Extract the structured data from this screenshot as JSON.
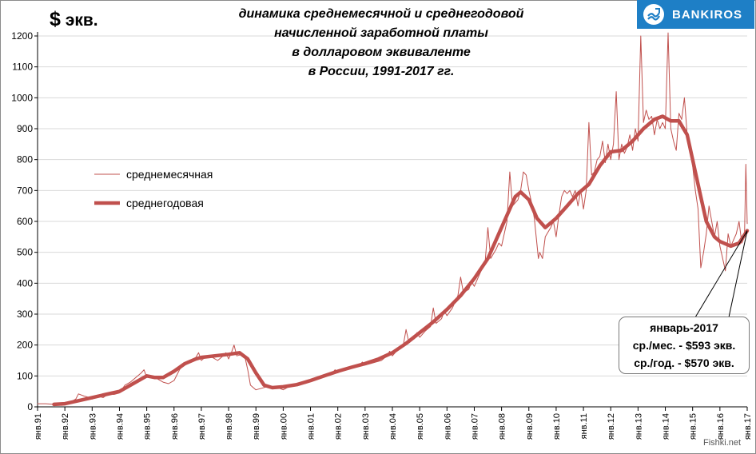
{
  "header": {
    "unit_symbol": "$",
    "unit_text": "экв.",
    "title_lines": [
      "динамика среднемесячной  и среднегодовой",
      "начисленной заработной платы",
      "в долларовом эквиваленте",
      "в России, 1991-2017 гг."
    ]
  },
  "logo": {
    "text": "BANKIROS"
  },
  "legend": {
    "monthly": "среднемесячная",
    "annual": "среднегодовая"
  },
  "annotation": {
    "lines": [
      "январь-2017",
      "ср./мес. - $593 экв.",
      "ср./год. - $570 экв."
    ]
  },
  "watermark": "Fishki.net",
  "colors": {
    "series": "#c0504d",
    "grid": "#d9d9d9",
    "axis": "#000000"
  },
  "chart_data": {
    "type": "line",
    "xlabel": "",
    "ylabel": "",
    "ylim": [
      0,
      1200
    ],
    "yticks": [
      0,
      100,
      200,
      300,
      400,
      500,
      600,
      700,
      800,
      900,
      1000,
      1100,
      1200
    ],
    "x_range": [
      1991.0,
      2017.0
    ],
    "x_ticks": [
      {
        "x": 1991,
        "label": "янв.91"
      },
      {
        "x": 1992,
        "label": "янв.92"
      },
      {
        "x": 1993,
        "label": "янв.93"
      },
      {
        "x": 1994,
        "label": "янв.94"
      },
      {
        "x": 1995,
        "label": "янв.95"
      },
      {
        "x": 1996,
        "label": "янв.96"
      },
      {
        "x": 1997,
        "label": "янв.97"
      },
      {
        "x": 1998,
        "label": "янв.98"
      },
      {
        "x": 1999,
        "label": "янв.99"
      },
      {
        "x": 2000,
        "label": "янв.00"
      },
      {
        "x": 2001,
        "label": "янв.01"
      },
      {
        "x": 2002,
        "label": "янв.02"
      },
      {
        "x": 2003,
        "label": "янв.03"
      },
      {
        "x": 2004,
        "label": "янв.04"
      },
      {
        "x": 2005,
        "label": "янв.05"
      },
      {
        "x": 2006,
        "label": "янв.06"
      },
      {
        "x": 2007,
        "label": "янв.07"
      },
      {
        "x": 2008,
        "label": "янв.08"
      },
      {
        "x": 2009,
        "label": "янв.09"
      },
      {
        "x": 2010,
        "label": "янв.10"
      },
      {
        "x": 2011,
        "label": "янв.11"
      },
      {
        "x": 2012,
        "label": "янв.12"
      },
      {
        "x": 2013,
        "label": "янв.13"
      },
      {
        "x": 2014,
        "label": "янв.14"
      },
      {
        "x": 2015,
        "label": "янв.15"
      },
      {
        "x": 2016,
        "label": "янв.16"
      },
      {
        "x": 2017,
        "label": "янв.17"
      }
    ],
    "grid": true,
    "legend_position": "left-middle",
    "series": [
      {
        "name": "среднемесячная",
        "style": "thin",
        "points": [
          [
            1991.0,
            10
          ],
          [
            1991.3,
            10
          ],
          [
            1991.6,
            8
          ],
          [
            1991.9,
            5
          ],
          [
            1992.0,
            8
          ],
          [
            1992.2,
            15
          ],
          [
            1992.4,
            25
          ],
          [
            1992.5,
            42
          ],
          [
            1992.7,
            35
          ],
          [
            1992.9,
            30
          ],
          [
            1993.0,
            25
          ],
          [
            1993.2,
            35
          ],
          [
            1993.4,
            30
          ],
          [
            1993.6,
            42
          ],
          [
            1993.8,
            40
          ],
          [
            1994.0,
            45
          ],
          [
            1994.2,
            70
          ],
          [
            1994.4,
            80
          ],
          [
            1994.6,
            95
          ],
          [
            1994.8,
            110
          ],
          [
            1994.9,
            120
          ],
          [
            1995.0,
            95
          ],
          [
            1995.2,
            100
          ],
          [
            1995.4,
            90
          ],
          [
            1995.6,
            80
          ],
          [
            1995.8,
            75
          ],
          [
            1996.0,
            85
          ],
          [
            1996.2,
            120
          ],
          [
            1996.4,
            140
          ],
          [
            1996.6,
            145
          ],
          [
            1996.8,
            160
          ],
          [
            1996.9,
            175
          ],
          [
            1997.0,
            150
          ],
          [
            1997.2,
            165
          ],
          [
            1997.4,
            160
          ],
          [
            1997.6,
            150
          ],
          [
            1997.8,
            165
          ],
          [
            1997.9,
            175
          ],
          [
            1998.0,
            155
          ],
          [
            1998.1,
            175
          ],
          [
            1998.2,
            200
          ],
          [
            1998.3,
            165
          ],
          [
            1998.5,
            170
          ],
          [
            1998.6,
            160
          ],
          [
            1998.7,
            120
          ],
          [
            1998.8,
            70
          ],
          [
            1999.0,
            55
          ],
          [
            1999.2,
            60
          ],
          [
            1999.4,
            65
          ],
          [
            1999.6,
            60
          ],
          [
            1999.8,
            62
          ],
          [
            2000.0,
            55
          ],
          [
            2000.2,
            65
          ],
          [
            2000.4,
            70
          ],
          [
            2000.6,
            75
          ],
          [
            2000.8,
            80
          ],
          [
            2001.0,
            85
          ],
          [
            2001.2,
            95
          ],
          [
            2001.4,
            100
          ],
          [
            2001.6,
            105
          ],
          [
            2001.8,
            110
          ],
          [
            2001.9,
            120
          ],
          [
            2002.0,
            110
          ],
          [
            2002.2,
            120
          ],
          [
            2002.4,
            125
          ],
          [
            2002.6,
            130
          ],
          [
            2002.8,
            135
          ],
          [
            2002.9,
            145
          ],
          [
            2003.0,
            135
          ],
          [
            2003.2,
            140
          ],
          [
            2003.4,
            145
          ],
          [
            2003.6,
            150
          ],
          [
            2003.8,
            165
          ],
          [
            2003.9,
            180
          ],
          [
            2004.0,
            165
          ],
          [
            2004.2,
            185
          ],
          [
            2004.4,
            200
          ],
          [
            2004.5,
            250
          ],
          [
            2004.6,
            210
          ],
          [
            2004.8,
            220
          ],
          [
            2004.9,
            240
          ],
          [
            2005.0,
            225
          ],
          [
            2005.2,
            245
          ],
          [
            2005.4,
            260
          ],
          [
            2005.5,
            320
          ],
          [
            2005.6,
            270
          ],
          [
            2005.8,
            285
          ],
          [
            2005.9,
            310
          ],
          [
            2006.0,
            295
          ],
          [
            2006.2,
            320
          ],
          [
            2006.4,
            360
          ],
          [
            2006.5,
            420
          ],
          [
            2006.6,
            370
          ],
          [
            2006.8,
            380
          ],
          [
            2006.9,
            405
          ],
          [
            2007.0,
            390
          ],
          [
            2007.2,
            430
          ],
          [
            2007.4,
            470
          ],
          [
            2007.5,
            580
          ],
          [
            2007.6,
            480
          ],
          [
            2007.8,
            510
          ],
          [
            2007.9,
            530
          ],
          [
            2008.0,
            520
          ],
          [
            2008.2,
            600
          ],
          [
            2008.3,
            760
          ],
          [
            2008.4,
            650
          ],
          [
            2008.6,
            670
          ],
          [
            2008.7,
            700
          ],
          [
            2008.8,
            760
          ],
          [
            2008.9,
            750
          ],
          [
            2009.0,
            700
          ],
          [
            2009.1,
            660
          ],
          [
            2009.2,
            610
          ],
          [
            2009.35,
            480
          ],
          [
            2009.4,
            500
          ],
          [
            2009.5,
            480
          ],
          [
            2009.6,
            550
          ],
          [
            2009.8,
            580
          ],
          [
            2009.9,
            600
          ],
          [
            2010.0,
            550
          ],
          [
            2010.1,
            620
          ],
          [
            2010.2,
            680
          ],
          [
            2010.3,
            700
          ],
          [
            2010.4,
            690
          ],
          [
            2010.5,
            700
          ],
          [
            2010.6,
            680
          ],
          [
            2010.7,
            700
          ],
          [
            2010.8,
            650
          ],
          [
            2010.9,
            700
          ],
          [
            2011.0,
            640
          ],
          [
            2011.1,
            700
          ],
          [
            2011.2,
            920
          ],
          [
            2011.3,
            750
          ],
          [
            2011.4,
            760
          ],
          [
            2011.5,
            800
          ],
          [
            2011.6,
            810
          ],
          [
            2011.7,
            860
          ],
          [
            2011.8,
            790
          ],
          [
            2011.9,
            850
          ],
          [
            2012.0,
            800
          ],
          [
            2012.1,
            850
          ],
          [
            2012.2,
            1020
          ],
          [
            2012.3,
            800
          ],
          [
            2012.4,
            850
          ],
          [
            2012.5,
            820
          ],
          [
            2012.6,
            840
          ],
          [
            2012.7,
            880
          ],
          [
            2012.8,
            830
          ],
          [
            2012.9,
            900
          ],
          [
            2013.0,
            860
          ],
          [
            2013.1,
            1200
          ],
          [
            2013.2,
            920
          ],
          [
            2013.3,
            960
          ],
          [
            2013.4,
            930
          ],
          [
            2013.5,
            940
          ],
          [
            2013.6,
            880
          ],
          [
            2013.7,
            930
          ],
          [
            2013.8,
            900
          ],
          [
            2013.9,
            920
          ],
          [
            2014.0,
            900
          ],
          [
            2014.1,
            1210
          ],
          [
            2014.2,
            900
          ],
          [
            2014.3,
            860
          ],
          [
            2014.4,
            830
          ],
          [
            2014.5,
            950
          ],
          [
            2014.6,
            930
          ],
          [
            2014.7,
            1000
          ],
          [
            2014.8,
            880
          ],
          [
            2014.9,
            830
          ],
          [
            2015.0,
            780
          ],
          [
            2015.1,
            700
          ],
          [
            2015.2,
            640
          ],
          [
            2015.3,
            450
          ],
          [
            2015.4,
            500
          ],
          [
            2015.5,
            560
          ],
          [
            2015.6,
            650
          ],
          [
            2015.7,
            600
          ],
          [
            2015.8,
            550
          ],
          [
            2015.9,
            600
          ],
          [
            2016.0,
            520
          ],
          [
            2016.1,
            480
          ],
          [
            2016.2,
            440
          ],
          [
            2016.3,
            560
          ],
          [
            2016.4,
            520
          ],
          [
            2016.5,
            540
          ],
          [
            2016.6,
            560
          ],
          [
            2016.7,
            600
          ],
          [
            2016.8,
            530
          ],
          [
            2016.9,
            550
          ],
          [
            2016.95,
            785
          ],
          [
            2017.0,
            593
          ]
        ]
      },
      {
        "name": "среднегодовая",
        "style": "thick",
        "points": [
          [
            1991.6,
            8
          ],
          [
            1992.0,
            10
          ],
          [
            1992.5,
            20
          ],
          [
            1993.0,
            30
          ],
          [
            1993.5,
            40
          ],
          [
            1994.0,
            50
          ],
          [
            1994.5,
            75
          ],
          [
            1995.0,
            100
          ],
          [
            1995.3,
            95
          ],
          [
            1995.6,
            95
          ],
          [
            1996.0,
            115
          ],
          [
            1996.4,
            140
          ],
          [
            1996.8,
            155
          ],
          [
            1997.0,
            160
          ],
          [
            1997.5,
            165
          ],
          [
            1998.0,
            170
          ],
          [
            1998.4,
            175
          ],
          [
            1998.7,
            155
          ],
          [
            1999.0,
            110
          ],
          [
            1999.3,
            70
          ],
          [
            1999.6,
            62
          ],
          [
            2000.0,
            65
          ],
          [
            2000.5,
            72
          ],
          [
            2001.0,
            85
          ],
          [
            2001.5,
            100
          ],
          [
            2002.0,
            115
          ],
          [
            2002.5,
            128
          ],
          [
            2003.0,
            140
          ],
          [
            2003.5,
            155
          ],
          [
            2004.0,
            175
          ],
          [
            2004.5,
            205
          ],
          [
            2005.0,
            240
          ],
          [
            2005.5,
            275
          ],
          [
            2006.0,
            315
          ],
          [
            2006.5,
            360
          ],
          [
            2007.0,
            415
          ],
          [
            2007.5,
            480
          ],
          [
            2008.0,
            580
          ],
          [
            2008.5,
            680
          ],
          [
            2008.7,
            695
          ],
          [
            2009.0,
            670
          ],
          [
            2009.3,
            610
          ],
          [
            2009.6,
            580
          ],
          [
            2010.0,
            610
          ],
          [
            2010.4,
            650
          ],
          [
            2010.8,
            690
          ],
          [
            2011.2,
            720
          ],
          [
            2011.6,
            780
          ],
          [
            2012.0,
            825
          ],
          [
            2012.4,
            830
          ],
          [
            2012.8,
            860
          ],
          [
            2013.2,
            900
          ],
          [
            2013.6,
            930
          ],
          [
            2013.9,
            940
          ],
          [
            2014.2,
            925
          ],
          [
            2014.5,
            925
          ],
          [
            2014.8,
            880
          ],
          [
            2015.0,
            800
          ],
          [
            2015.3,
            680
          ],
          [
            2015.5,
            600
          ],
          [
            2015.8,
            550
          ],
          [
            2016.0,
            535
          ],
          [
            2016.4,
            520
          ],
          [
            2016.7,
            530
          ],
          [
            2017.0,
            570
          ]
        ]
      }
    ]
  }
}
